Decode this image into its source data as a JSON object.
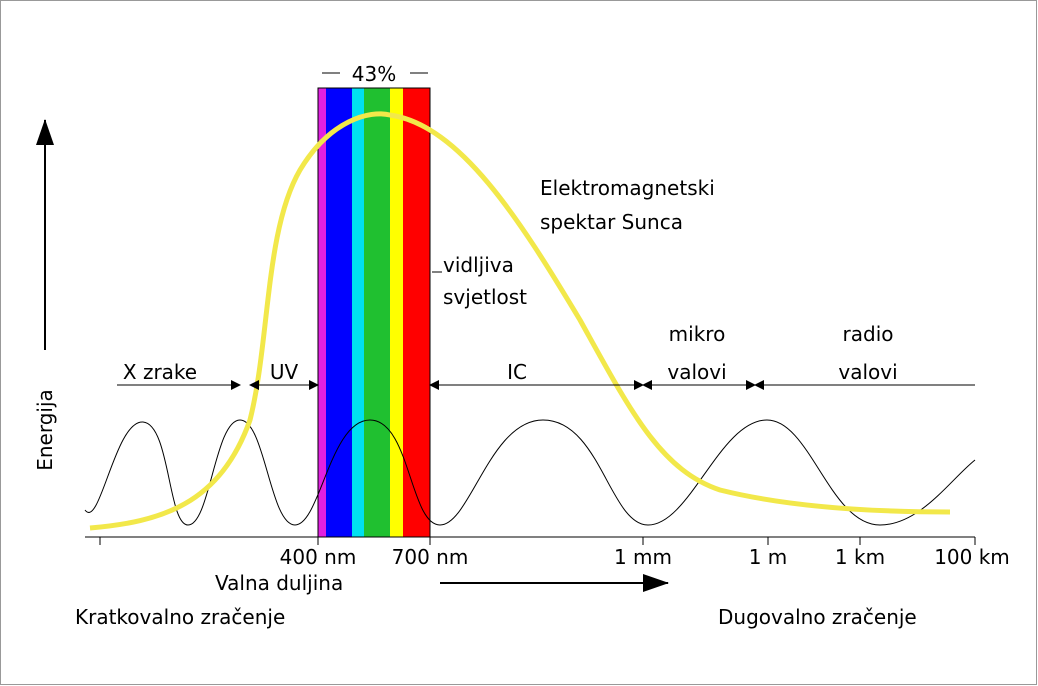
{
  "title": {
    "line1": "Elektromagnetski",
    "line2": "spektar Sunca"
  },
  "y_axis_label": "Energija",
  "visible": {
    "share": "43%",
    "line1": "vidljiva",
    "line2": "svjetlost"
  },
  "regions": [
    {
      "line1": "X zrake"
    },
    {
      "line1": "UV"
    },
    {
      "line1": "IC"
    },
    {
      "line1": "mikro",
      "line2": "valovi"
    },
    {
      "line1": "radio",
      "line2": "valovi"
    }
  ],
  "x_ticks": [
    "400 nm",
    "700 nm",
    "1 mm",
    "1 m",
    "1 km",
    "100 km"
  ],
  "x_axis_label": "Valna duljina",
  "left_note": "Kratkovalno zračenje",
  "right_note": "Dugovalno zračenje"
}
